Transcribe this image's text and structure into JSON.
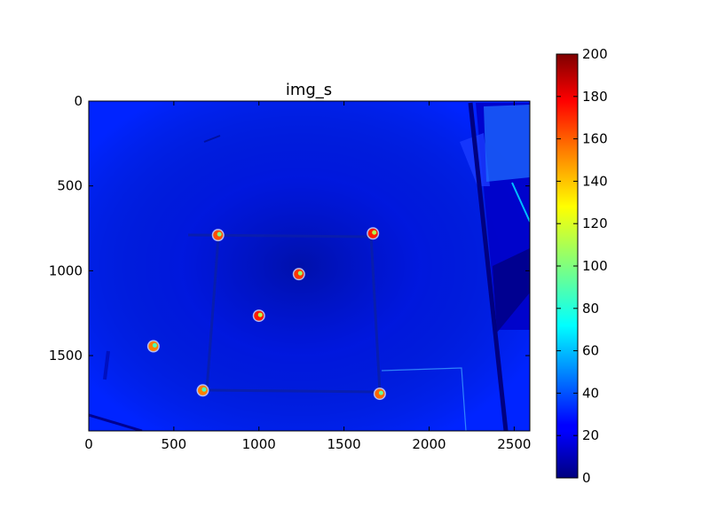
{
  "chart_data": {
    "type": "heatmap",
    "title": "img_s",
    "xlabel": "",
    "ylabel": "",
    "colormap": "jet",
    "xlim": [
      0,
      2592
    ],
    "ylim": [
      1944,
      0
    ],
    "x_ticks": [
      0,
      500,
      1000,
      1500,
      2000,
      2500
    ],
    "y_ticks": [
      0,
      500,
      1000,
      1500
    ],
    "colorbar": {
      "range": [
        0,
        200
      ],
      "ticks": [
        0,
        20,
        40,
        60,
        80,
        100,
        120,
        140,
        160,
        180,
        200
      ]
    },
    "background_value": 32,
    "hot_spots": [
      {
        "x": 760,
        "y": 790,
        "value": 160
      },
      {
        "x": 1670,
        "y": 780,
        "value": 170
      },
      {
        "x": 1235,
        "y": 1020,
        "value": 165
      },
      {
        "x": 1000,
        "y": 1265,
        "value": 170
      },
      {
        "x": 380,
        "y": 1445,
        "value": 150
      },
      {
        "x": 670,
        "y": 1705,
        "value": 150
      },
      {
        "x": 1710,
        "y": 1725,
        "value": 155
      }
    ],
    "grid": false,
    "colors": {
      "jet_0": "#00007f",
      "jet_1": "#0000ff",
      "jet_2": "#007fff",
      "jet_3": "#00ffff",
      "jet_4": "#7fff7f",
      "jet_5": "#ffff00",
      "jet_6": "#ff7f00",
      "jet_7": "#ff0000",
      "jet_8": "#7f0000"
    }
  }
}
